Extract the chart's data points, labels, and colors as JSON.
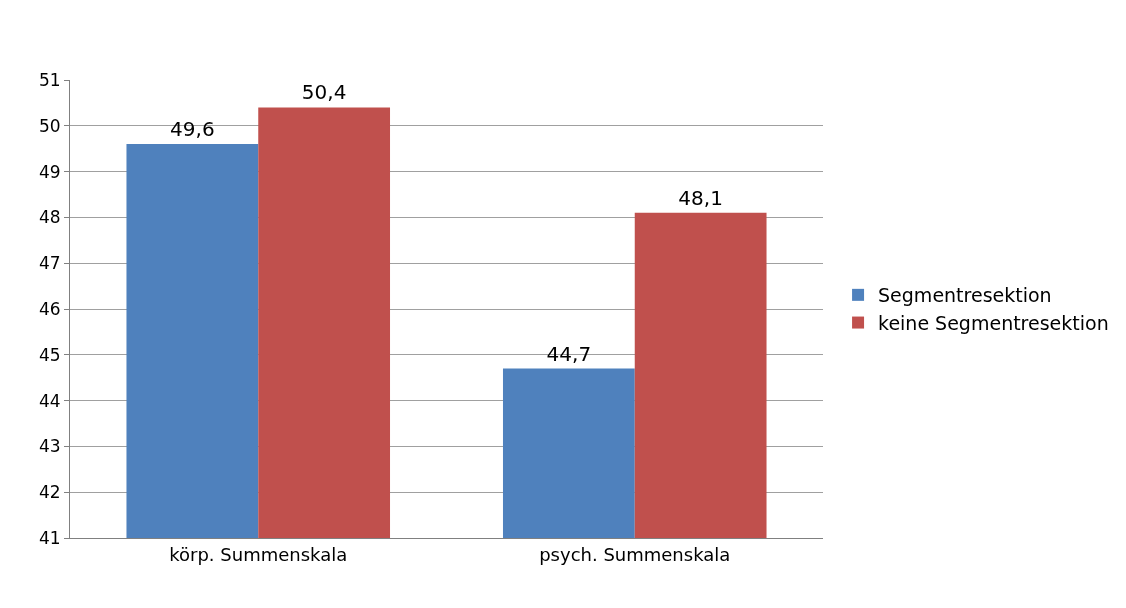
{
  "chart_data": {
    "type": "bar",
    "categories": [
      "körp. Summenskala",
      "psych. Summenskala"
    ],
    "series": [
      {
        "name": "Segmentresektion",
        "color": "#4f81bd",
        "values": [
          49.6,
          44.7
        ],
        "value_labels": [
          "49,6",
          "44,7"
        ]
      },
      {
        "name": "keine Segmentresektion",
        "color": "#c0504d",
        "values": [
          50.4,
          48.1
        ],
        "value_labels": [
          "50,4",
          "48,1"
        ]
      }
    ],
    "ylim": [
      41,
      51
    ],
    "yticks": [
      41,
      42,
      43,
      44,
      45,
      46,
      47,
      48,
      49,
      50,
      51
    ],
    "grid": "y",
    "legend": "right"
  }
}
